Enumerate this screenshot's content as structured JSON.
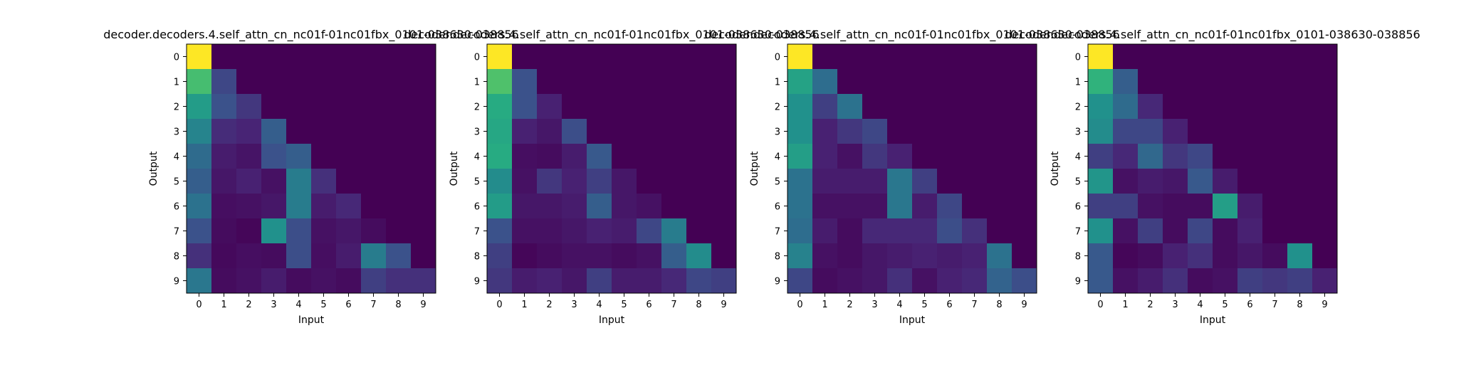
{
  "chart_data": [
    {
      "type": "heatmap",
      "title": "decoder.decoders.4.self_attn_cn_nc01f-01nc01fbx_0101-038630-038856",
      "xlabel": "Input",
      "ylabel": "Output",
      "x_ticks": [
        "0",
        "1",
        "2",
        "3",
        "4",
        "5",
        "6",
        "7",
        "8",
        "9"
      ],
      "y_ticks": [
        "0",
        "1",
        "2",
        "3",
        "4",
        "5",
        "6",
        "7",
        "8",
        "9"
      ],
      "colormap": "viridis",
      "values": [
        [
          1.0,
          0,
          0,
          0,
          0,
          0,
          0,
          0,
          0,
          0
        ],
        [
          0.7,
          0.22,
          0,
          0,
          0,
          0,
          0,
          0,
          0,
          0
        ],
        [
          0.55,
          0.25,
          0.18,
          0,
          0,
          0,
          0,
          0,
          0,
          0
        ],
        [
          0.45,
          0.15,
          0.13,
          0.3,
          0,
          0,
          0,
          0,
          0,
          0
        ],
        [
          0.35,
          0.1,
          0.07,
          0.25,
          0.3,
          0,
          0,
          0,
          0,
          0
        ],
        [
          0.3,
          0.08,
          0.12,
          0.06,
          0.42,
          0.16,
          0,
          0,
          0,
          0
        ],
        [
          0.38,
          0.05,
          0.06,
          0.08,
          0.42,
          0.1,
          0.14,
          0,
          0,
          0
        ],
        [
          0.25,
          0.04,
          0.02,
          0.5,
          0.24,
          0.06,
          0.08,
          0.04,
          0,
          0
        ],
        [
          0.16,
          0.03,
          0.05,
          0.04,
          0.24,
          0.05,
          0.1,
          0.42,
          0.25,
          0
        ],
        [
          0.4,
          0.04,
          0.06,
          0.1,
          0.04,
          0.06,
          0.04,
          0.2,
          0.16,
          0.16
        ]
      ]
    },
    {
      "type": "heatmap",
      "title": "decoder.decoders.4.self_attn_cn_nc01f-01nc01fbx_0101-038630-038856",
      "xlabel": "Input",
      "ylabel": "Output",
      "x_ticks": [
        "0",
        "1",
        "2",
        "3",
        "4",
        "5",
        "6",
        "7",
        "8",
        "9"
      ],
      "y_ticks": [
        "0",
        "1",
        "2",
        "3",
        "4",
        "5",
        "6",
        "7",
        "8",
        "9"
      ],
      "colormap": "viridis",
      "values": [
        [
          1.0,
          0,
          0,
          0,
          0,
          0,
          0,
          0,
          0,
          0
        ],
        [
          0.72,
          0.25,
          0,
          0,
          0,
          0,
          0,
          0,
          0,
          0
        ],
        [
          0.62,
          0.25,
          0.12,
          0,
          0,
          0,
          0,
          0,
          0,
          0
        ],
        [
          0.6,
          0.12,
          0.08,
          0.24,
          0,
          0,
          0,
          0,
          0,
          0
        ],
        [
          0.62,
          0.05,
          0.04,
          0.1,
          0.28,
          0,
          0,
          0,
          0,
          0
        ],
        [
          0.48,
          0.06,
          0.18,
          0.12,
          0.2,
          0.08,
          0,
          0,
          0,
          0
        ],
        [
          0.55,
          0.08,
          0.08,
          0.1,
          0.3,
          0.08,
          0.06,
          0,
          0,
          0
        ],
        [
          0.25,
          0.06,
          0.06,
          0.08,
          0.12,
          0.1,
          0.22,
          0.42,
          0,
          0
        ],
        [
          0.2,
          0.02,
          0.04,
          0.06,
          0.06,
          0.04,
          0.06,
          0.3,
          0.48,
          0
        ],
        [
          0.18,
          0.1,
          0.12,
          0.08,
          0.2,
          0.1,
          0.1,
          0.14,
          0.22,
          0.2
        ]
      ]
    },
    {
      "type": "heatmap",
      "title": "decoder.decoders.4.self_attn_cn_nc01f-01nc01fbx_0101-038630-038856",
      "xlabel": "Input",
      "ylabel": "Output",
      "x_ticks": [
        "0",
        "1",
        "2",
        "3",
        "4",
        "5",
        "6",
        "7",
        "8",
        "9"
      ],
      "y_ticks": [
        "0",
        "1",
        "2",
        "3",
        "4",
        "5",
        "6",
        "7",
        "8",
        "9"
      ],
      "colormap": "viridis",
      "values": [
        [
          1.0,
          0,
          0,
          0,
          0,
          0,
          0,
          0,
          0,
          0
        ],
        [
          0.58,
          0.36,
          0,
          0,
          0,
          0,
          0,
          0,
          0,
          0
        ],
        [
          0.5,
          0.2,
          0.38,
          0,
          0,
          0,
          0,
          0,
          0,
          0
        ],
        [
          0.5,
          0.12,
          0.18,
          0.22,
          0,
          0,
          0,
          0,
          0,
          0
        ],
        [
          0.56,
          0.12,
          0.06,
          0.18,
          0.12,
          0,
          0,
          0,
          0,
          0
        ],
        [
          0.38,
          0.1,
          0.1,
          0.1,
          0.4,
          0.2,
          0,
          0,
          0,
          0
        ],
        [
          0.38,
          0.06,
          0.06,
          0.06,
          0.4,
          0.1,
          0.22,
          0,
          0,
          0
        ],
        [
          0.36,
          0.1,
          0.04,
          0.14,
          0.14,
          0.14,
          0.24,
          0.16,
          0,
          0
        ],
        [
          0.44,
          0.06,
          0.04,
          0.08,
          0.1,
          0.12,
          0.1,
          0.12,
          0.38,
          0
        ],
        [
          0.22,
          0.04,
          0.06,
          0.08,
          0.16,
          0.06,
          0.12,
          0.14,
          0.32,
          0.24
        ]
      ]
    },
    {
      "type": "heatmap",
      "title": "decoder.decoders.4.self_attn_cn_nc01f-01nc01fbx_0101-038630-038856",
      "xlabel": "Input",
      "ylabel": "Output",
      "x_ticks": [
        "0",
        "1",
        "2",
        "3",
        "4",
        "5",
        "6",
        "7",
        "8",
        "9"
      ],
      "y_ticks": [
        "0",
        "1",
        "2",
        "3",
        "4",
        "5",
        "6",
        "7",
        "8",
        "9"
      ],
      "colormap": "viridis",
      "values": [
        [
          1.0,
          0,
          0,
          0,
          0,
          0,
          0,
          0,
          0,
          0
        ],
        [
          0.65,
          0.3,
          0,
          0,
          0,
          0,
          0,
          0,
          0,
          0
        ],
        [
          0.5,
          0.35,
          0.14,
          0,
          0,
          0,
          0,
          0,
          0,
          0
        ],
        [
          0.48,
          0.22,
          0.22,
          0.12,
          0,
          0,
          0,
          0,
          0,
          0
        ],
        [
          0.2,
          0.14,
          0.34,
          0.18,
          0.22,
          0,
          0,
          0,
          0,
          0
        ],
        [
          0.52,
          0.06,
          0.1,
          0.08,
          0.28,
          0.1,
          0,
          0,
          0,
          0
        ],
        [
          0.2,
          0.2,
          0.06,
          0.04,
          0.04,
          0.56,
          0.1,
          0,
          0,
          0
        ],
        [
          0.5,
          0.06,
          0.2,
          0.04,
          0.22,
          0.04,
          0.12,
          0,
          0,
          0
        ],
        [
          0.28,
          0.02,
          0.04,
          0.12,
          0.16,
          0.04,
          0.08,
          0.04,
          0.5,
          0
        ],
        [
          0.28,
          0.06,
          0.1,
          0.16,
          0.04,
          0.06,
          0.2,
          0.18,
          0.2,
          0.12
        ]
      ]
    }
  ]
}
